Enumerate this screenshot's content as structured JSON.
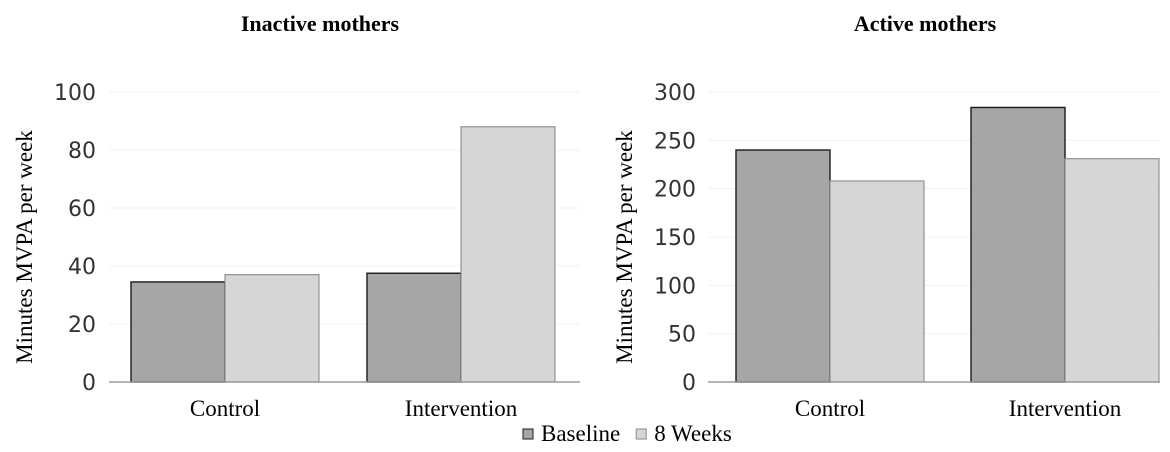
{
  "chart_data": [
    {
      "type": "bar",
      "title": "Inactive mothers",
      "ylabel": "Minutes MVPA per week",
      "xlabel": "",
      "categories": [
        "Control",
        "Intervention"
      ],
      "yticks": [
        0,
        20,
        40,
        60,
        80,
        100
      ],
      "ylim": [
        0,
        100
      ],
      "grid": true,
      "series": [
        {
          "name": "Baseline",
          "values": [
            34.5,
            37.5
          ]
        },
        {
          "name": "8 Weeks",
          "values": [
            37,
            88
          ]
        }
      ]
    },
    {
      "type": "bar",
      "title": "Active mothers",
      "ylabel": "Minutes MVPA per week",
      "xlabel": "",
      "categories": [
        "Control",
        "Intervention"
      ],
      "yticks": [
        0,
        50,
        100,
        150,
        200,
        250,
        300
      ],
      "ylim": [
        0,
        300
      ],
      "grid": true,
      "series": [
        {
          "name": "Baseline",
          "values": [
            240,
            284
          ]
        },
        {
          "name": "8 Weeks",
          "values": [
            208,
            231
          ]
        }
      ]
    }
  ],
  "legend": {
    "placement": "bottom-center",
    "items": [
      {
        "label": "Baseline",
        "color": "#a6a6a6",
        "edge": "#1a1a1a"
      },
      {
        "label": "8 Weeks",
        "color": "#d6d6d6",
        "edge": "#8a8a8a"
      }
    ]
  },
  "colors": {
    "baseline_fill": "#a6a6a6",
    "baseline_edge": "#1a1a1a",
    "weeks_fill": "#d6d6d6",
    "weeks_edge": "#8a8a8a"
  }
}
